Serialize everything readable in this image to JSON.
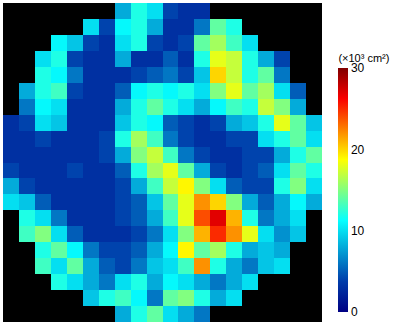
{
  "chart_data": {
    "type": "heatmap",
    "color": "Jet",
    "tick_labels": false,
    "colorbar": {
      "title": "(×10³ cm²)",
      "range": [
        0,
        30
      ],
      "ticks": [
        0,
        10,
        20,
        30
      ]
    },
    "z": [
      [
        null,
        null,
        null,
        null,
        null,
        null,
        null,
        8,
        12,
        10,
        4,
        3,
        3,
        null,
        null,
        null,
        null,
        null,
        null,
        null
      ],
      [
        null,
        null,
        null,
        null,
        null,
        10,
        4,
        11,
        12,
        8,
        3,
        3,
        6,
        14,
        12,
        null,
        null,
        null,
        null,
        null
      ],
      [
        null,
        null,
        null,
        11,
        9,
        4,
        3,
        10,
        12,
        4,
        3,
        4,
        14,
        16,
        13,
        10,
        null,
        null,
        null,
        null
      ],
      [
        null,
        null,
        10,
        12,
        4,
        3,
        3,
        8,
        3,
        3,
        5,
        3,
        12,
        18,
        17,
        12,
        8,
        4,
        null,
        null
      ],
      [
        null,
        null,
        12,
        11,
        6,
        3,
        3,
        3,
        4,
        5,
        6,
        4,
        9,
        20,
        17,
        12,
        14,
        6,
        null,
        null
      ],
      [
        null,
        8,
        12,
        13,
        4,
        3,
        3,
        5,
        11,
        12,
        11,
        12,
        10,
        15,
        18,
        14,
        16,
        10,
        5,
        null
      ],
      [
        null,
        6,
        11,
        10,
        3,
        3,
        3,
        8,
        12,
        14,
        12,
        10,
        8,
        11,
        13,
        12,
        17,
        15,
        8,
        null
      ],
      [
        3,
        4,
        10,
        9,
        3,
        3,
        3,
        9,
        12,
        11,
        5,
        4,
        3,
        4,
        8,
        9,
        12,
        18,
        14,
        9
      ],
      [
        3,
        3,
        4,
        3,
        3,
        3,
        4,
        12,
        16,
        13,
        6,
        4,
        3,
        3,
        4,
        4,
        10,
        12,
        14,
        10
      ],
      [
        3,
        3,
        3,
        3,
        3,
        3,
        4,
        8,
        15,
        17,
        13,
        6,
        4,
        3,
        3,
        4,
        4,
        8,
        12,
        14
      ],
      [
        4,
        3,
        3,
        3,
        4,
        3,
        3,
        5,
        12,
        16,
        18,
        14,
        8,
        4,
        3,
        4,
        5,
        10,
        14,
        12
      ],
      [
        8,
        4,
        3,
        3,
        3,
        3,
        3,
        4,
        8,
        13,
        17,
        19,
        15,
        10,
        5,
        4,
        4,
        12,
        15,
        10
      ],
      [
        10,
        9,
        5,
        3,
        3,
        3,
        3,
        4,
        5,
        9,
        14,
        18,
        22,
        20,
        15,
        8,
        5,
        8,
        11,
        8
      ],
      [
        null,
        12,
        10,
        6,
        3,
        3,
        3,
        4,
        5,
        8,
        13,
        18,
        24,
        27,
        21,
        12,
        6,
        8,
        10,
        null
      ],
      [
        null,
        13,
        15,
        10,
        5,
        3,
        3,
        3,
        4,
        6,
        10,
        15,
        21,
        25,
        22,
        18,
        10,
        7,
        9,
        null
      ],
      [
        null,
        null,
        12,
        14,
        11,
        6,
        4,
        4,
        5,
        8,
        11,
        19,
        14,
        16,
        12,
        8,
        9,
        8,
        null,
        null
      ],
      [
        null,
        null,
        13,
        10,
        14,
        8,
        5,
        4,
        6,
        9,
        10,
        13,
        22,
        12,
        8,
        6,
        9,
        10,
        null,
        null
      ],
      [
        null,
        null,
        null,
        12,
        10,
        8,
        6,
        10,
        12,
        8,
        11,
        10,
        8,
        6,
        8,
        10,
        null,
        null,
        null,
        null
      ],
      [
        null,
        null,
        null,
        null,
        null,
        9,
        12,
        13,
        11,
        6,
        14,
        15,
        12,
        8,
        10,
        null,
        null,
        null,
        null,
        null
      ],
      [
        null,
        null,
        null,
        null,
        null,
        null,
        null,
        8,
        12,
        14,
        10,
        8,
        6,
        null,
        null,
        null,
        null,
        null,
        null,
        null
      ]
    ]
  }
}
